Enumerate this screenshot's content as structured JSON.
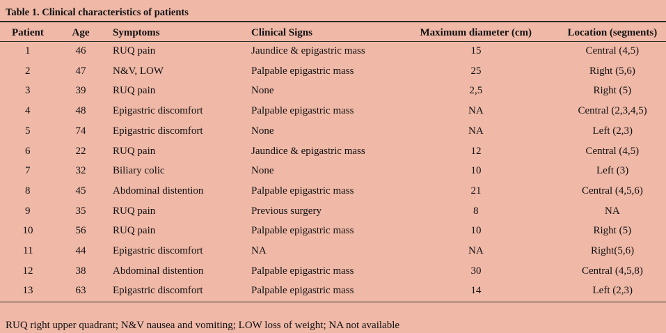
{
  "table": {
    "title": "Table 1. Clinical characteristics of patients",
    "columns": [
      "Patient",
      "Age",
      "Symptoms",
      "Clinical Signs",
      "Maximum diameter (cm)",
      "Location (segments)"
    ],
    "rows": [
      [
        "1",
        "46",
        "RUQ pain",
        "Jaundice & epigastric mass",
        "15",
        "Central (4,5)"
      ],
      [
        "2",
        "47",
        "N&V, LOW",
        "Palpable epigastric mass",
        "25",
        "Right (5,6)"
      ],
      [
        "3",
        "39",
        "RUQ pain",
        "None",
        "2,5",
        "Right (5)"
      ],
      [
        "4",
        "48",
        "Epigastric discomfort",
        "Palpable epigastric mass",
        "NA",
        "Central (2,3,4,5)"
      ],
      [
        "5",
        "74",
        "Epigastric discomfort",
        "None",
        "NA",
        "Left (2,3)"
      ],
      [
        "6",
        "22",
        "RUQ pain",
        "Jaundice & epigastric mass",
        "12",
        "Central (4,5)"
      ],
      [
        "7",
        "32",
        "Biliary colic",
        "None",
        "10",
        "Left (3)"
      ],
      [
        "8",
        "45",
        "Abdominal distention",
        "Palpable epigastric mass",
        "21",
        "Central (4,5,6)"
      ],
      [
        "9",
        "35",
        "RUQ pain",
        "Previous surgery",
        "8",
        "NA"
      ],
      [
        "10",
        "56",
        "RUQ pain",
        "Palpable epigastric mass",
        "10",
        "Right (5)"
      ],
      [
        "11",
        "44",
        "Epigastric discomfort",
        "NA",
        "NA",
        "Right(5,6)"
      ],
      [
        "12",
        "38",
        "Abdominal distention",
        "Palpable epigastric mass",
        "30",
        "Central (4,5,8)"
      ],
      [
        "13",
        "63",
        "Epigastric discomfort",
        "Palpable epigastric mass",
        "14",
        "Left (2,3)"
      ]
    ],
    "footnote": "RUQ right upper quadrant; N&V nausea and vomiting; LOW loss of weight; NA not available"
  }
}
